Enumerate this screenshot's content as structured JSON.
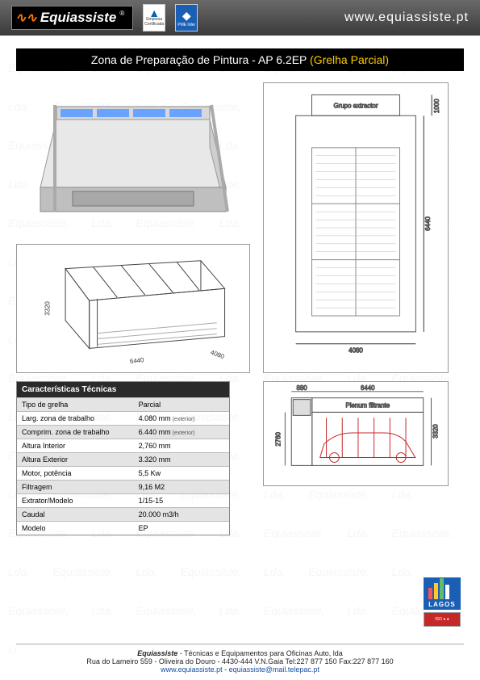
{
  "header": {
    "logo_text": "Equiassiste",
    "cert1_label": "Empresa Certificada",
    "cert2_label": "PME líder",
    "url": "www.equiassiste.pt"
  },
  "title": {
    "main": "Zona de Preparação de Pintura - AP 6.2EP",
    "suffix": "(Grelha Parcial)"
  },
  "watermark_text": "Equiassiste, Lda.",
  "diagram_topview": {
    "extractor_label": "Grupo extractor",
    "width_mm": "4080",
    "length_mm": "6440",
    "extractor_depth_mm": "1000",
    "line_color": "#555555",
    "grid_color": "#888888",
    "bg": "#ffffff"
  },
  "diagram_iso_wire": {
    "height_mm": "3320",
    "length_mm": "6440",
    "width_mm": "4080",
    "line_color": "#444444"
  },
  "diagram_side": {
    "plenum_label": "Plenum filtrante",
    "ext_width_mm": "880",
    "length_mm": "6440",
    "int_height_mm": "2760",
    "ext_height_mm": "3320",
    "car_color": "#c62828",
    "line_color": "#555555"
  },
  "specs": {
    "heading": "Características Técnicas",
    "rows": [
      {
        "label": "Tipo de grelha",
        "value": "Parcial"
      },
      {
        "label": "Larg. zona de trabalho",
        "value": "4.080 mm",
        "note": "(exterior)"
      },
      {
        "label": "Comprim. zona de trabalho",
        "value": "6.440 mm",
        "note": "(exterior)"
      },
      {
        "label": "Altura Interior",
        "value": "2,760 mm"
      },
      {
        "label": "Altura Exterior",
        "value": "3.320 mm"
      },
      {
        "label": "Motor, potência",
        "value": "5,5 Kw"
      },
      {
        "label": "Filtragem",
        "value": "9,16 M2"
      },
      {
        "label": "Extrator/Modelo",
        "value": "1/15-15"
      },
      {
        "label": "Caudal",
        "value": "20.000 m3/h"
      },
      {
        "label": "Modelo",
        "value": "EP"
      }
    ]
  },
  "lagos": {
    "brand": "LAGOS"
  },
  "footer": {
    "company": "Equiassiste",
    "company_desc": " - Técnicas e Equipamentos para Oficinas Auto, lda",
    "address": "Rua do Lameiro 559 - Oliveira do Douro - 4430-444 V.N.Gaia   Tel:227 877 150  Fax:227 877 160",
    "web": "www.equiassiste.pt",
    "sep": "   -   ",
    "email": "equiassiste@mail.telepac.pt"
  }
}
